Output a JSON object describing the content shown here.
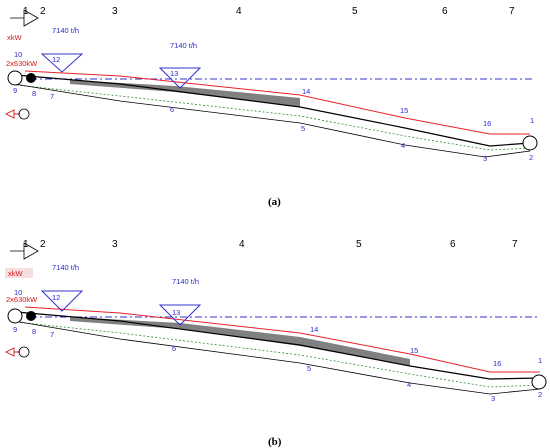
{
  "panels": [
    {
      "caption": "(a)",
      "sections": [
        "1",
        "2",
        "3",
        "4",
        "5",
        "6",
        "7"
      ],
      "flows": [
        "7140 t/h",
        "7140 t/h"
      ],
      "power": [
        "xkW",
        "2x630kW"
      ],
      "node_labels": [
        "1",
        "2",
        "3",
        "4",
        "5",
        "6",
        "7",
        "8",
        "9",
        "10",
        "12",
        "13",
        "14",
        "15",
        "16"
      ]
    },
    {
      "caption": "(b)",
      "sections": [
        "1",
        "2",
        "3",
        "4",
        "5",
        "6",
        "7"
      ],
      "flows": [
        "7140 t/h",
        "7140 t/h"
      ],
      "power": [
        "xkW",
        "2x630kW"
      ],
      "node_labels": [
        "1",
        "2",
        "3",
        "4",
        "5",
        "6",
        "7",
        "8",
        "9",
        "10",
        "12",
        "13",
        "14",
        "15",
        "16"
      ]
    }
  ],
  "colors": {
    "belt_upper": "#e8222a",
    "belt_lower": "#000000",
    "return_strand": "#2f8f2f",
    "material": "#808080",
    "hopper": "#3333cc",
    "level_line": "#3333cc",
    "label_blue": "#2b2bd0",
    "label_red": "#d01a1a"
  }
}
